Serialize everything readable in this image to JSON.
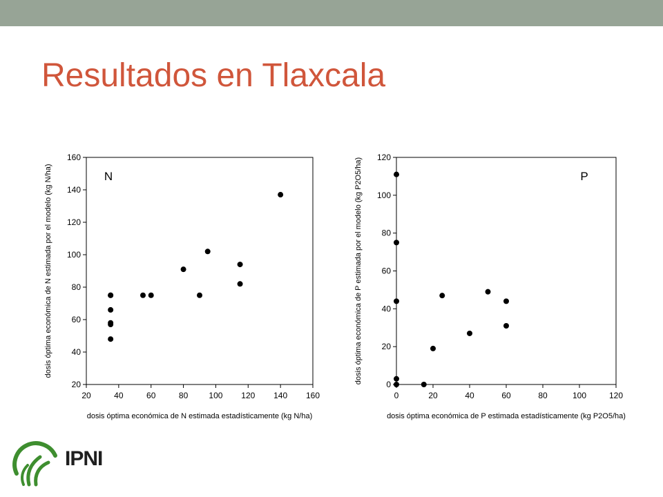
{
  "slide": {
    "title": "Resultados en Tlaxcala",
    "title_color": "#d0563b",
    "topbar_color": "#97a496"
  },
  "logo": {
    "text": "IPNI",
    "green": "#3e8e2f",
    "dark": "#1f1f1f"
  },
  "chart_data": [
    {
      "type": "scatter",
      "panel_label": "N",
      "xlabel": "dosis óptima económica de N estimada estadísticamente (kg N/ha)",
      "ylabel": "dosis óptima económica de N estimada por el modelo (kg N/ha)",
      "xlim": [
        20,
        160
      ],
      "ylim": [
        20,
        160
      ],
      "xticks": [
        20,
        40,
        60,
        80,
        100,
        120,
        140,
        160
      ],
      "yticks": [
        20,
        40,
        60,
        80,
        100,
        120,
        140,
        160
      ],
      "series": [
        {
          "x": [
            35,
            35,
            35,
            35,
            35,
            35,
            55,
            60,
            80,
            90,
            95,
            115,
            115,
            140
          ],
          "y": [
            48,
            57,
            58,
            66,
            75,
            75,
            75,
            75,
            91,
            75,
            102,
            82,
            94,
            137
          ]
        }
      ]
    },
    {
      "type": "scatter",
      "panel_label": "P",
      "xlabel": "dosis óptima económica de P estimada estadísticamente (kg P2O5/ha)",
      "ylabel": "dosis óptima económica de P estimada por el modelo (kg P2O5/ha)",
      "xlim": [
        0,
        120
      ],
      "ylim": [
        0,
        120
      ],
      "xticks": [
        0,
        20,
        40,
        60,
        80,
        100,
        120
      ],
      "yticks": [
        0,
        20,
        40,
        60,
        80,
        100,
        120
      ],
      "series": [
        {
          "x": [
            0,
            0,
            0,
            0,
            0,
            15,
            20,
            25,
            40,
            50,
            60,
            60
          ],
          "y": [
            111,
            75,
            44,
            3,
            0,
            0,
            19,
            47,
            27,
            49,
            44,
            31
          ]
        }
      ]
    }
  ]
}
